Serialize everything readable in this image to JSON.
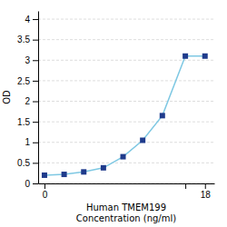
{
  "chart_data": {
    "type": "line",
    "xlabel": "Human TMEM199\nConcentration (ng/ml)",
    "ylabel": "OD",
    "x": [
      0.0625,
      0.125,
      0.25,
      0.5,
      1,
      2,
      4,
      9,
      18
    ],
    "series": [
      {
        "type": "line",
        "color": "#7EC8E3",
        "values": [
          0.2,
          0.22,
          0.28,
          0.38,
          0.65,
          1.05,
          1.65,
          3.1,
          3.1
        ]
      },
      {
        "type": "scatter",
        "color": "#1F3B8C",
        "marker": "square",
        "values": [
          0.2,
          0.22,
          0.28,
          0.38,
          0.65,
          1.05,
          1.65,
          3.1,
          3.1
        ]
      }
    ],
    "log": "x",
    "xlim": [
      0.05,
      25
    ],
    "xticks": [
      {
        "value": 0.0625,
        "label": "0"
      },
      {
        "value": 9,
        "label": null
      },
      18
    ],
    "ylim": [
      0,
      4.2
    ],
    "yticks": [
      0,
      0.5,
      1,
      1.5,
      2,
      2.5,
      3,
      3.5,
      4
    ],
    "grid": true
  }
}
